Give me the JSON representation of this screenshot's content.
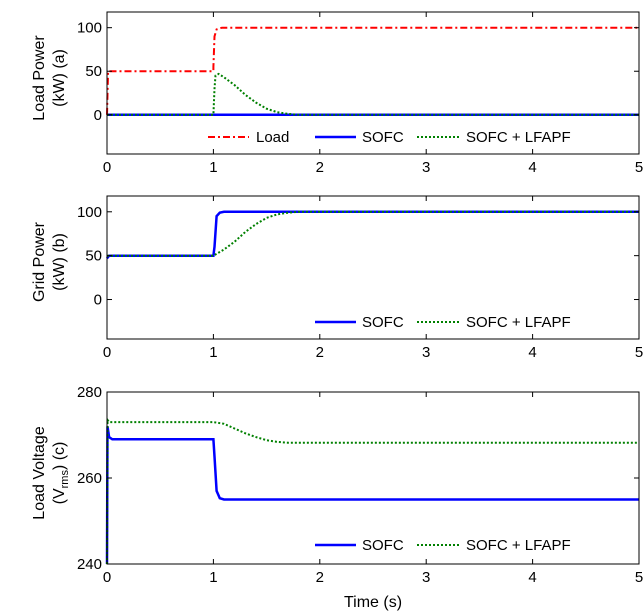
{
  "chart_data": [
    {
      "type": "line",
      "ylabel_line1": "Load Power",
      "ylabel_line2": "(kW) (a)",
      "xlim": [
        0,
        5
      ],
      "ylim": [
        -45,
        118
      ],
      "xticks": [
        "0",
        "1",
        "2",
        "3",
        "4",
        "5"
      ],
      "yticks": [
        {
          "v": 0,
          "label": "0"
        },
        {
          "v": 50,
          "label": "50"
        },
        {
          "v": 100,
          "label": "100"
        }
      ],
      "grid": false,
      "legend": "bottom",
      "series": [
        {
          "name": "Load",
          "color": "#ff0000",
          "style": "dashdot",
          "x": [
            0,
            0.01,
            1.0,
            1.0,
            1.01,
            1.03,
            1.08,
            5.0
          ],
          "y": [
            0,
            50,
            50,
            55,
            90,
            98,
            100,
            100
          ]
        },
        {
          "name": "SOFC",
          "color": "#0000ff",
          "style": "solid",
          "x": [
            0,
            5.0
          ],
          "y": [
            0,
            0
          ]
        },
        {
          "name": "SOFC + LFAPF",
          "color": "#008000",
          "style": "dotted",
          "x": [
            0,
            1.0,
            1.01,
            1.02,
            1.05,
            1.1,
            1.2,
            1.3,
            1.4,
            1.5,
            1.6,
            1.7,
            1.8,
            5.0
          ],
          "y": [
            0,
            0,
            30,
            45,
            47,
            43,
            34,
            23,
            14,
            7,
            3,
            1,
            0,
            0
          ]
        }
      ]
    },
    {
      "type": "line",
      "ylabel_line1": "Grid Power",
      "ylabel_line2": "(kW) (b)",
      "xlim": [
        0,
        5
      ],
      "ylim": [
        -45,
        118
      ],
      "xticks": [
        "0",
        "1",
        "2",
        "3",
        "4",
        "5"
      ],
      "yticks": [
        {
          "v": 0,
          "label": "0"
        },
        {
          "v": 50,
          "label": "50"
        },
        {
          "v": 100,
          "label": "100"
        }
      ],
      "grid": false,
      "legend": "bottom",
      "series": [
        {
          "name": "SOFC",
          "color": "#0000ff",
          "style": "solid",
          "x": [
            0,
            0.02,
            1.0,
            1.01,
            1.03,
            1.06,
            1.1,
            5.0
          ],
          "y": [
            47,
            50,
            50,
            60,
            95,
            99,
            100,
            100
          ]
        },
        {
          "name": "SOFC + LFAPF",
          "color": "#008000",
          "style": "dotted",
          "x": [
            0,
            1.0,
            1.1,
            1.2,
            1.3,
            1.4,
            1.5,
            1.6,
            1.7,
            1.8,
            5.0
          ],
          "y": [
            50,
            50,
            57,
            66,
            77,
            86,
            93,
            97,
            99,
            100,
            100
          ]
        }
      ]
    },
    {
      "type": "line",
      "ylabel_line1": "Load Voltage",
      "ylabel_line2_pre": "(V",
      "ylabel_line2_sub": "rms",
      "ylabel_line2_post": ") (c)",
      "xlabel": "Time (s)",
      "xlim": [
        0,
        5
      ],
      "ylim": [
        240,
        280
      ],
      "xticks": [
        "0",
        "1",
        "2",
        "3",
        "4",
        "5"
      ],
      "yticks": [
        {
          "v": 240,
          "label": "240"
        },
        {
          "v": 260,
          "label": "260"
        },
        {
          "v": 280,
          "label": "280"
        }
      ],
      "grid": false,
      "legend": "bottom",
      "series": [
        {
          "name": "SOFC",
          "color": "#0000ff",
          "style": "solid",
          "x": [
            0,
            0.005,
            0.02,
            0.05,
            1.0,
            1.01,
            1.03,
            1.06,
            1.1,
            5.0
          ],
          "y": [
            240,
            272,
            269.5,
            269,
            269,
            265,
            257,
            255.3,
            255,
            255
          ]
        },
        {
          "name": "SOFC + LFAPF",
          "color": "#008000",
          "style": "dotted",
          "x": [
            0,
            0.005,
            0.02,
            1.0,
            1.1,
            1.2,
            1.3,
            1.4,
            1.5,
            1.6,
            1.7,
            5.0
          ],
          "y": [
            240,
            273.5,
            273,
            273,
            272.6,
            271.5,
            270.4,
            269.5,
            268.8,
            268.4,
            268.2,
            268.2
          ]
        }
      ]
    }
  ]
}
